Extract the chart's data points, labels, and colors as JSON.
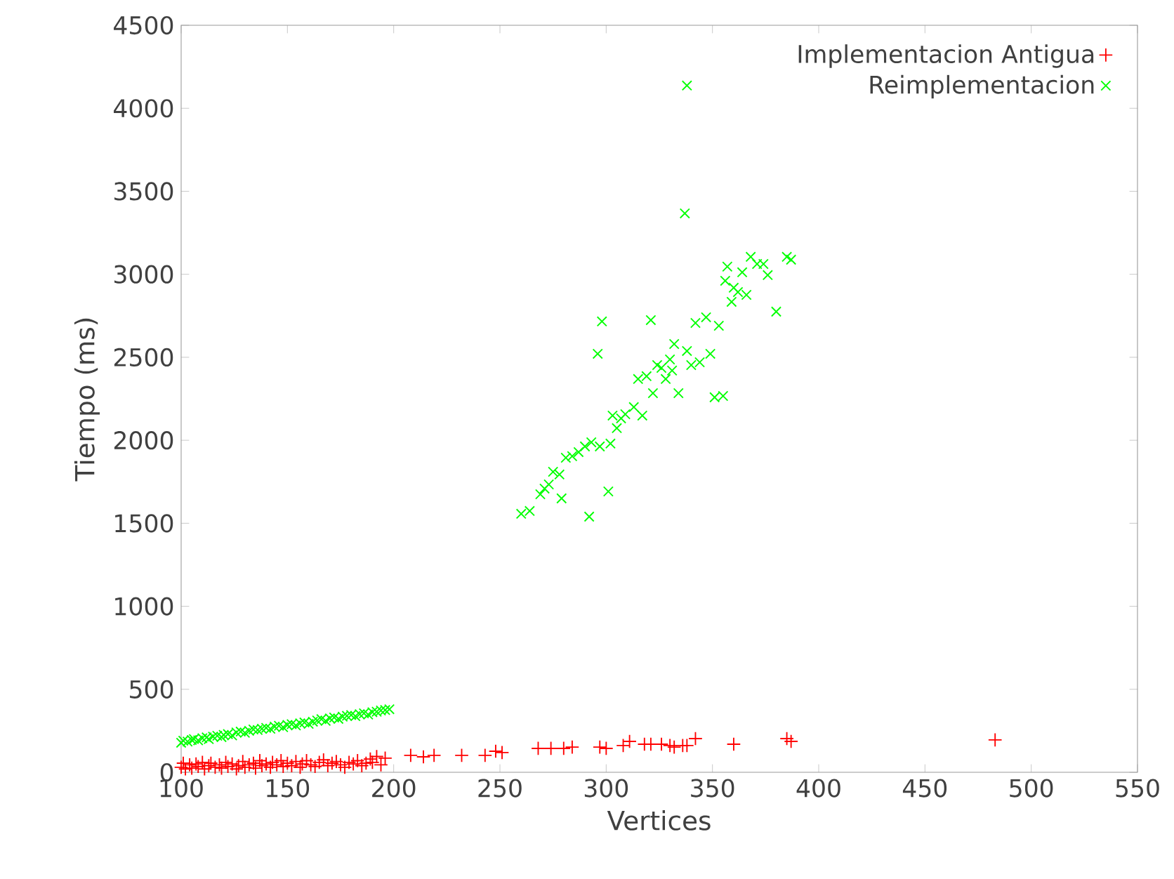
{
  "chart_data": {
    "type": "scatter",
    "xlabel": "Vertices",
    "ylabel": "Tiempo (ms)",
    "xlim": [
      100,
      550
    ],
    "ylim": [
      0,
      4500
    ],
    "xticks": [
      100,
      150,
      200,
      250,
      300,
      350,
      400,
      450,
      500,
      550
    ],
    "yticks": [
      0,
      500,
      1000,
      1500,
      2000,
      2500,
      3000,
      3500,
      4000,
      4500
    ],
    "legend": "top right",
    "series": [
      {
        "name": "Implementacion Antigua",
        "color": "#ff0000",
        "marker": "plus",
        "x": [
          100,
          101,
          102,
          104,
          105,
          107,
          108,
          110,
          111,
          113,
          114,
          116,
          118,
          119,
          121,
          122,
          124,
          126,
          127,
          129,
          130,
          132,
          134,
          135,
          137,
          138,
          140,
          142,
          143,
          145,
          147,
          148,
          150,
          152,
          154,
          156,
          157,
          159,
          161,
          163,
          165,
          167,
          169,
          171,
          173,
          175,
          177,
          179,
          181,
          183,
          185,
          187,
          189,
          190,
          192,
          194,
          196,
          208,
          214,
          219,
          232,
          243,
          248,
          251,
          268,
          274,
          280,
          284,
          297,
          300,
          308,
          311,
          318,
          321,
          326,
          330,
          332,
          336,
          338,
          342,
          360,
          385,
          387,
          483
        ],
        "values": [
          30,
          55,
          20,
          45,
          25,
          50,
          35,
          60,
          20,
          40,
          55,
          30,
          45,
          25,
          60,
          35,
          50,
          20,
          40,
          65,
          30,
          45,
          55,
          25,
          70,
          40,
          50,
          30,
          60,
          45,
          70,
          35,
          55,
          40,
          65,
          30,
          50,
          70,
          45,
          35,
          60,
          75,
          40,
          55,
          65,
          45,
          30,
          60,
          50,
          70,
          40,
          55,
          80,
          60,
          95,
          45,
          85,
          102,
          93,
          102,
          102,
          102,
          127,
          119,
          144,
          144,
          144,
          152,
          152,
          144,
          161,
          186,
          169,
          169,
          169,
          161,
          152,
          161,
          161,
          203,
          169,
          203,
          186,
          195
        ]
      },
      {
        "name": "Reimplementacion",
        "color": "#00ff00",
        "marker": "cross",
        "x": [
          100,
          101,
          103,
          105,
          106,
          108,
          110,
          112,
          113,
          115,
          117,
          119,
          120,
          122,
          124,
          126,
          128,
          130,
          132,
          134,
          136,
          138,
          140,
          142,
          144,
          146,
          148,
          150,
          152,
          154,
          156,
          158,
          160,
          162,
          164,
          166,
          168,
          170,
          172,
          174,
          176,
          178,
          180,
          182,
          184,
          186,
          188,
          190,
          192,
          194,
          196,
          198,
          260,
          264,
          269,
          271,
          273,
          275,
          278,
          279,
          281,
          284,
          287,
          290,
          292,
          293,
          296,
          297,
          298,
          301,
          302,
          303,
          305,
          307,
          309,
          313,
          315,
          317,
          319,
          321,
          322,
          324,
          326,
          328,
          330,
          331,
          332,
          334,
          337,
          338,
          338,
          340,
          342,
          344,
          347,
          349,
          351,
          353,
          355,
          356,
          357,
          359,
          360,
          362,
          364,
          366,
          368,
          371,
          374,
          376,
          380,
          385,
          387
        ],
        "values": [
          178,
          190,
          185,
          195,
          200,
          192,
          205,
          210,
          200,
          215,
          220,
          212,
          225,
          230,
          222,
          240,
          245,
          238,
          250,
          258,
          255,
          262,
          268,
          262,
          275,
          280,
          272,
          285,
          290,
          282,
          295,
          300,
          292,
          305,
          312,
          320,
          310,
          325,
          330,
          322,
          335,
          340,
          345,
          338,
          350,
          355,
          348,
          362,
          365,
          372,
          375,
          380,
          1557,
          1574,
          1675,
          1709,
          1734,
          1810,
          1794,
          1650,
          1895,
          1904,
          1929,
          1963,
          1540,
          1988,
          2521,
          1963,
          2716,
          1692,
          1980,
          2149,
          2073,
          2132,
          2157,
          2200,
          2369,
          2149,
          2386,
          2724,
          2284,
          2453,
          2436,
          2369,
          2487,
          2420,
          2580,
          2284,
          3367,
          4137,
          2538,
          2453,
          2707,
          2470,
          2741,
          2521,
          2259,
          2690,
          2267,
          2961,
          3046,
          2834,
          2919,
          2893,
          3012,
          2876,
          3105,
          3062,
          3062,
          2995,
          2775,
          3105,
          3088
        ]
      }
    ]
  }
}
